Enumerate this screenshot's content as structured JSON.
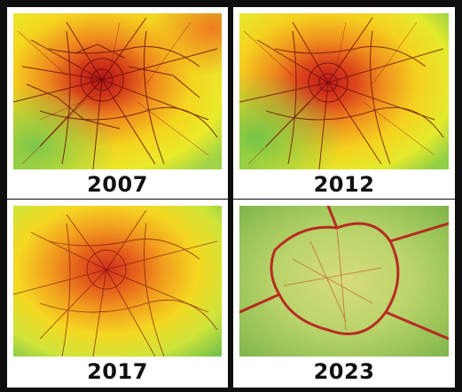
{
  "panels": [
    {
      "year": "2007"
    },
    {
      "year": "2012"
    },
    {
      "year": "2017"
    },
    {
      "year": "2023"
    }
  ],
  "colors": {
    "background": "#0f0f0f",
    "panel_frame": "#ffffff",
    "heat_high": "#c41a1a",
    "heat_mid": "#f28c1e",
    "heat_low": "#f3e623",
    "heat_none": "#6fc04a"
  }
}
